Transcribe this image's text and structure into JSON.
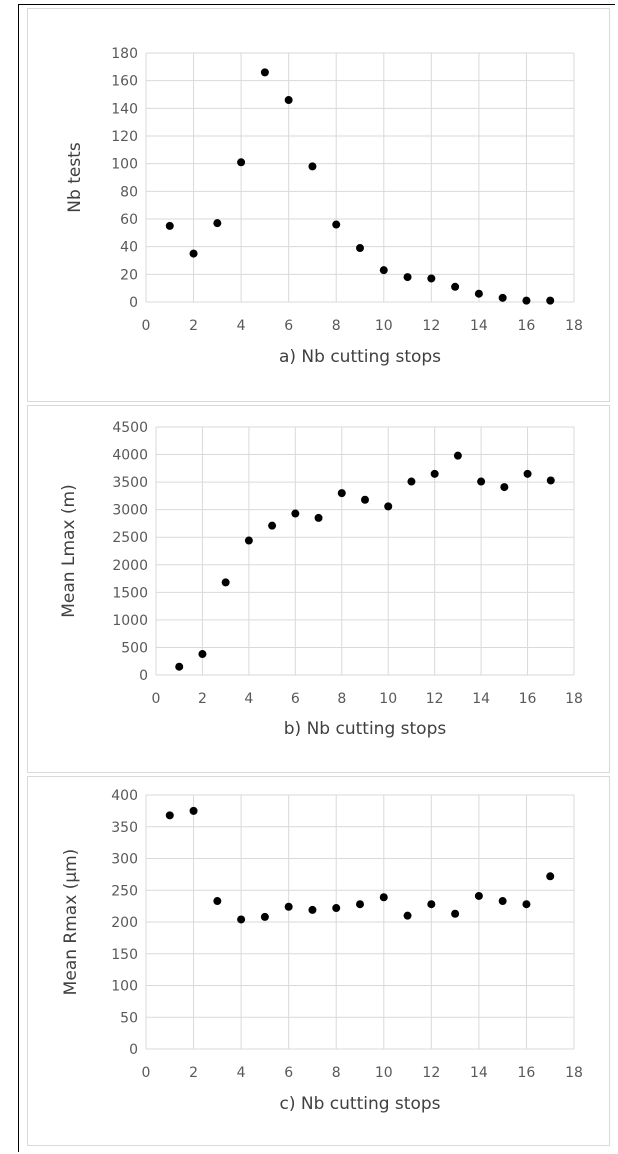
{
  "chart_data": [
    {
      "type": "scatter",
      "xlabel": "a) Nb cutting stops",
      "ylabel": "Nb tests",
      "xlim": [
        0,
        18
      ],
      "ylim": [
        0,
        180
      ],
      "xticks": [
        0,
        2,
        4,
        6,
        8,
        10,
        12,
        14,
        16,
        18
      ],
      "yticks": [
        0,
        20,
        40,
        60,
        80,
        100,
        120,
        140,
        160,
        180
      ],
      "grid": true,
      "marker_color": "#000000",
      "x": [
        1,
        2,
        3,
        4,
        5,
        6,
        7,
        8,
        9,
        10,
        11,
        12,
        13,
        14,
        15,
        16,
        17
      ],
      "y": [
        55,
        35,
        57,
        101,
        166,
        146,
        98,
        56,
        39,
        23,
        18,
        17,
        11,
        6,
        3,
        1,
        1
      ]
    },
    {
      "type": "scatter",
      "xlabel": "b) Nb cutting stops",
      "ylabel": "Mean Lmax (m)",
      "xlim": [
        0,
        18
      ],
      "ylim": [
        0,
        4500
      ],
      "xticks": [
        0,
        2,
        4,
        6,
        8,
        10,
        12,
        14,
        16,
        18
      ],
      "yticks": [
        0,
        500,
        1000,
        1500,
        2000,
        2500,
        3000,
        3500,
        4000,
        4500
      ],
      "grid": true,
      "marker_color": "#000000",
      "x": [
        1,
        2,
        3,
        4,
        5,
        6,
        7,
        8,
        9,
        10,
        11,
        12,
        13,
        14,
        15,
        16,
        17
      ],
      "y": [
        150,
        380,
        1680,
        2440,
        2710,
        2930,
        2850,
        3300,
        3180,
        3060,
        3510,
        3650,
        3980,
        3510,
        3410,
        3650,
        3530
      ]
    },
    {
      "type": "scatter",
      "xlabel": "c) Nb cutting stops",
      "ylabel": "Mean Rmax (µm)",
      "xlim": [
        0,
        18
      ],
      "ylim": [
        0,
        400
      ],
      "xticks": [
        0,
        2,
        4,
        6,
        8,
        10,
        12,
        14,
        16,
        18
      ],
      "yticks": [
        0,
        50,
        100,
        150,
        200,
        250,
        300,
        350,
        400
      ],
      "grid": true,
      "marker_color": "#000000",
      "x": [
        1,
        2,
        3,
        4,
        5,
        6,
        7,
        8,
        9,
        10,
        11,
        12,
        13,
        14,
        15,
        16,
        17
      ],
      "y": [
        368,
        375,
        233,
        204,
        208,
        224,
        219,
        222,
        228,
        239,
        210,
        228,
        213,
        241,
        233,
        228,
        272
      ]
    }
  ]
}
